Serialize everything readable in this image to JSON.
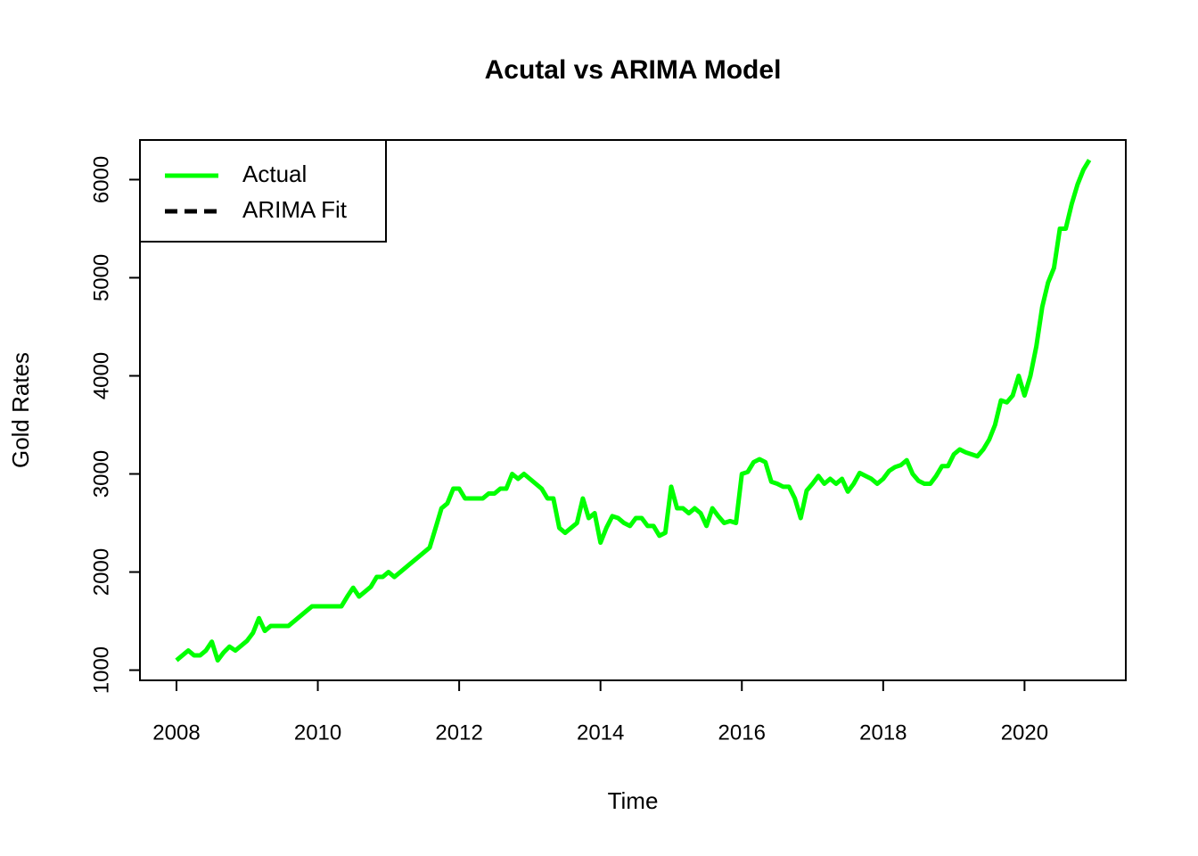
{
  "chart_data": {
    "type": "line",
    "title": "Acutal vs ARIMA Model",
    "x_label": "Time",
    "y_label": "Gold Rates",
    "xlim": [
      2007.483,
      2021.433
    ],
    "xticks": [
      2008,
      2010,
      2012,
      2014,
      2016,
      2018,
      2020
    ],
    "ylim": [
      896,
      6404
    ],
    "yticks": [
      1000,
      2000,
      3000,
      4000,
      5000,
      6000
    ],
    "legend_position": "topleft",
    "legend": [
      {
        "name": "Actual",
        "color": "#00ff00",
        "dash": false
      },
      {
        "name": "ARIMA Fit",
        "color": "#000000",
        "dash": true
      }
    ],
    "x": [
      2008,
      2008.083,
      2008.167,
      2008.25,
      2008.333,
      2008.417,
      2008.5,
      2008.583,
      2008.667,
      2008.75,
      2008.833,
      2008.917,
      2009,
      2009.083,
      2009.167,
      2009.25,
      2009.333,
      2009.417,
      2009.5,
      2009.583,
      2009.667,
      2009.75,
      2009.833,
      2009.917,
      2010,
      2010.083,
      2010.167,
      2010.25,
      2010.333,
      2010.417,
      2010.5,
      2010.583,
      2010.667,
      2010.75,
      2010.833,
      2010.917,
      2011,
      2011.083,
      2011.167,
      2011.25,
      2011.333,
      2011.417,
      2011.5,
      2011.583,
      2011.667,
      2011.75,
      2011.833,
      2011.917,
      2012,
      2012.083,
      2012.167,
      2012.25,
      2012.333,
      2012.417,
      2012.5,
      2012.583,
      2012.667,
      2012.75,
      2012.833,
      2012.917,
      2013,
      2013.083,
      2013.167,
      2013.25,
      2013.333,
      2013.417,
      2013.5,
      2013.583,
      2013.667,
      2013.75,
      2013.833,
      2013.917,
      2014,
      2014.083,
      2014.167,
      2014.25,
      2014.333,
      2014.417,
      2014.5,
      2014.583,
      2014.667,
      2014.75,
      2014.833,
      2014.917,
      2015,
      2015.083,
      2015.167,
      2015.25,
      2015.333,
      2015.417,
      2015.5,
      2015.583,
      2015.667,
      2015.75,
      2015.833,
      2015.917,
      2016,
      2016.083,
      2016.167,
      2016.25,
      2016.333,
      2016.417,
      2016.5,
      2016.583,
      2016.667,
      2016.75,
      2016.833,
      2016.917,
      2017,
      2017.083,
      2017.167,
      2017.25,
      2017.333,
      2017.417,
      2017.5,
      2017.583,
      2017.667,
      2017.75,
      2017.833,
      2017.917,
      2018,
      2018.083,
      2018.167,
      2018.25,
      2018.333,
      2018.417,
      2018.5,
      2018.583,
      2018.667,
      2018.75,
      2018.833,
      2018.917,
      2019,
      2019.083,
      2019.167,
      2019.25,
      2019.333,
      2019.417,
      2019.5,
      2019.583,
      2019.667,
      2019.75,
      2019.833,
      2019.917,
      2020,
      2020.083,
      2020.167,
      2020.25,
      2020.333,
      2020.417,
      2020.5,
      2020.583,
      2020.667,
      2020.75,
      2020.833,
      2020.917
    ],
    "series": [
      {
        "name": "Actual",
        "color": "#00ff00",
        "values": [
          1100,
          1150,
          1200,
          1150,
          1150,
          1200,
          1290,
          1100,
          1180,
          1240,
          1200,
          1250,
          1300,
          1380,
          1530,
          1400,
          1450,
          1450,
          1450,
          1450,
          1500,
          1550,
          1600,
          1650,
          1650,
          1650,
          1650,
          1650,
          1650,
          1750,
          1840,
          1750,
          1800,
          1850,
          1950,
          1950,
          2000,
          1950,
          2000,
          2050,
          2100,
          2150,
          2200,
          2250,
          2450,
          2650,
          2700,
          2850,
          2850,
          2750,
          2750,
          2750,
          2750,
          2800,
          2800,
          2850,
          2850,
          3000,
          2950,
          3000,
          2950,
          2900,
          2850,
          2750,
          2750,
          2450,
          2400,
          2450,
          2500,
          2750,
          2550,
          2600,
          2300,
          2450,
          2570,
          2550,
          2500,
          2470,
          2550,
          2550,
          2470,
          2470,
          2370,
          2400,
          2870,
          2650,
          2650,
          2600,
          2650,
          2600,
          2470,
          2650,
          2570,
          2500,
          2520,
          2500,
          3000,
          3020,
          3120,
          3150,
          3120,
          2920,
          2900,
          2870,
          2870,
          2750,
          2550,
          2830,
          2900,
          2980,
          2900,
          2950,
          2900,
          2950,
          2820,
          2900,
          3010,
          2980,
          2950,
          2900,
          2950,
          3030,
          3070,
          3090,
          3140,
          3000,
          2930,
          2900,
          2900,
          2980,
          3080,
          3080,
          3200,
          3250,
          3220,
          3200,
          3180,
          3250,
          3350,
          3500,
          3750,
          3730,
          3800,
          4000,
          3800,
          4000,
          4300,
          4700,
          4950,
          5100,
          5500,
          5500,
          5750,
          5950,
          6100,
          6200
        ]
      }
    ]
  }
}
